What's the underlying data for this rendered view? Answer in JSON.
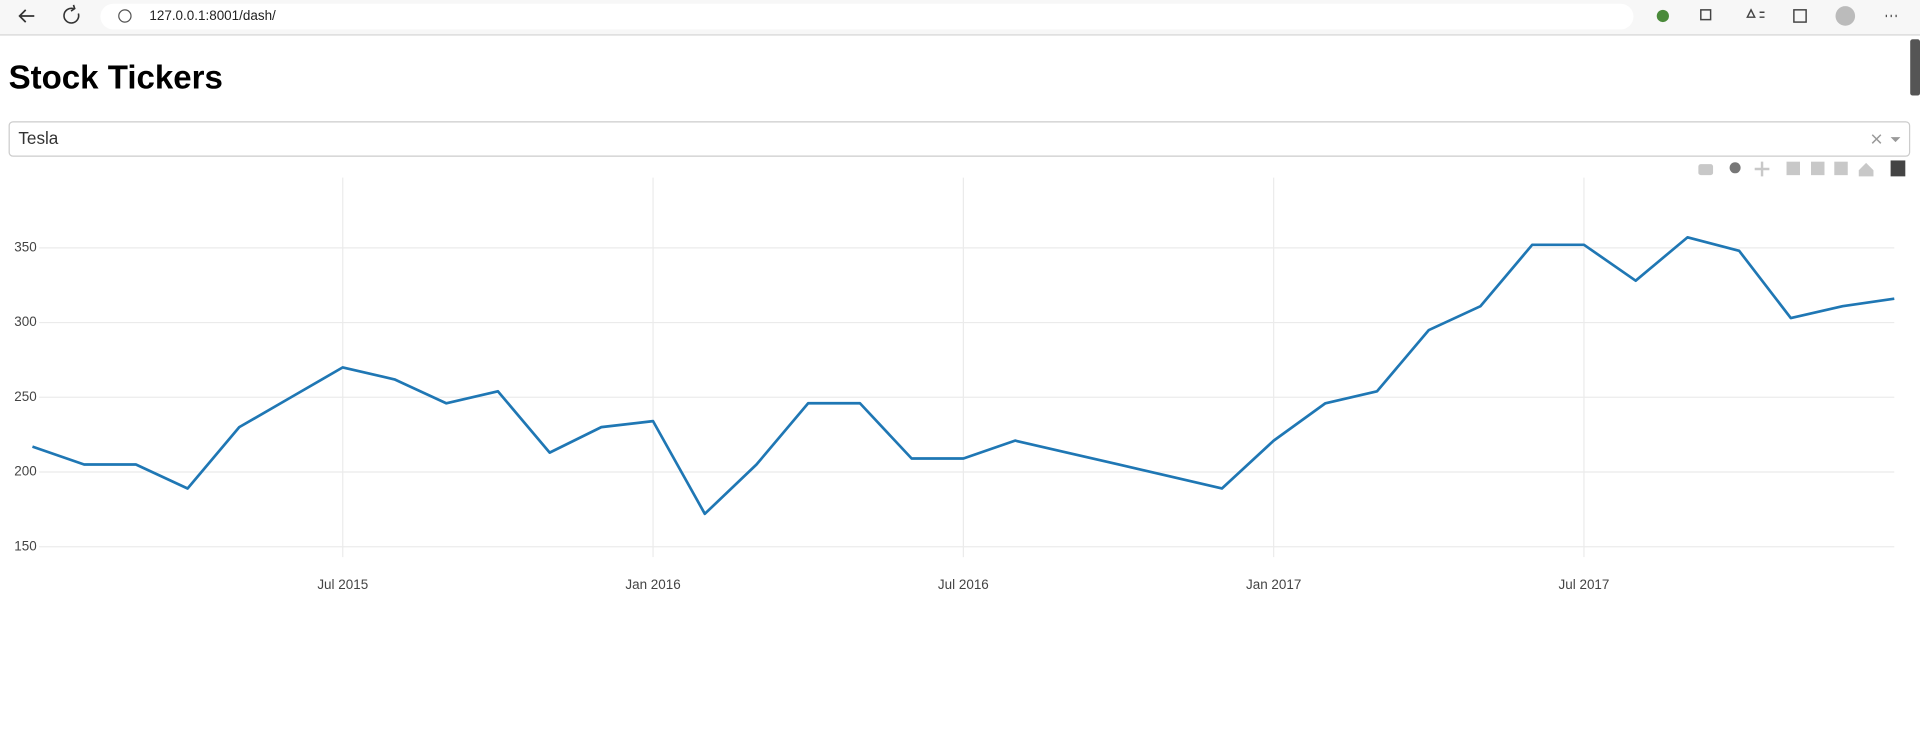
{
  "browser": {
    "url": "127.0.0.1:8001/dash/"
  },
  "header": {
    "title": "Stock Tickers"
  },
  "dropdown": {
    "value": "Tesla"
  },
  "chart_data": {
    "type": "line",
    "x": [
      "2015-01",
      "2015-02",
      "2015-03",
      "2015-04",
      "2015-05",
      "2015-06",
      "2015-07",
      "2015-08",
      "2015-09",
      "2015-10",
      "2015-11",
      "2015-12",
      "2016-01",
      "2016-02",
      "2016-03",
      "2016-04",
      "2016-05",
      "2016-06",
      "2016-07",
      "2016-08",
      "2016-09",
      "2016-10",
      "2016-11",
      "2016-12",
      "2017-01",
      "2017-02",
      "2017-03",
      "2017-04",
      "2017-05",
      "2017-06",
      "2017-07",
      "2017-08",
      "2017-09",
      "2017-10",
      "2017-11",
      "2017-12",
      "2018-01"
    ],
    "series": [
      {
        "name": "Tesla",
        "color": "#1f77b4",
        "values": [
          217,
          205,
          205,
          189,
          230,
          250,
          270,
          262,
          246,
          254,
          213,
          230,
          234,
          172,
          205,
          246,
          246,
          209,
          209,
          221,
          213,
          205,
          197,
          189,
          221,
          246,
          254,
          295,
          311,
          352,
          352,
          328,
          357,
          348,
          303,
          311,
          316
        ]
      }
    ],
    "xlim": [
      "2015-01",
      "2018-01"
    ],
    "xticks": [
      {
        "value": "2015-07",
        "label": "Jul 2015"
      },
      {
        "value": "2016-01",
        "label": "Jan 2016"
      },
      {
        "value": "2016-07",
        "label": "Jul 2016"
      },
      {
        "value": "2017-01",
        "label": "Jan 2017"
      },
      {
        "value": "2017-07",
        "label": "Jul 2017"
      }
    ],
    "ylim": [
      143,
      397
    ],
    "yticks": [
      150,
      200,
      250,
      300,
      350
    ],
    "grid": true
  }
}
